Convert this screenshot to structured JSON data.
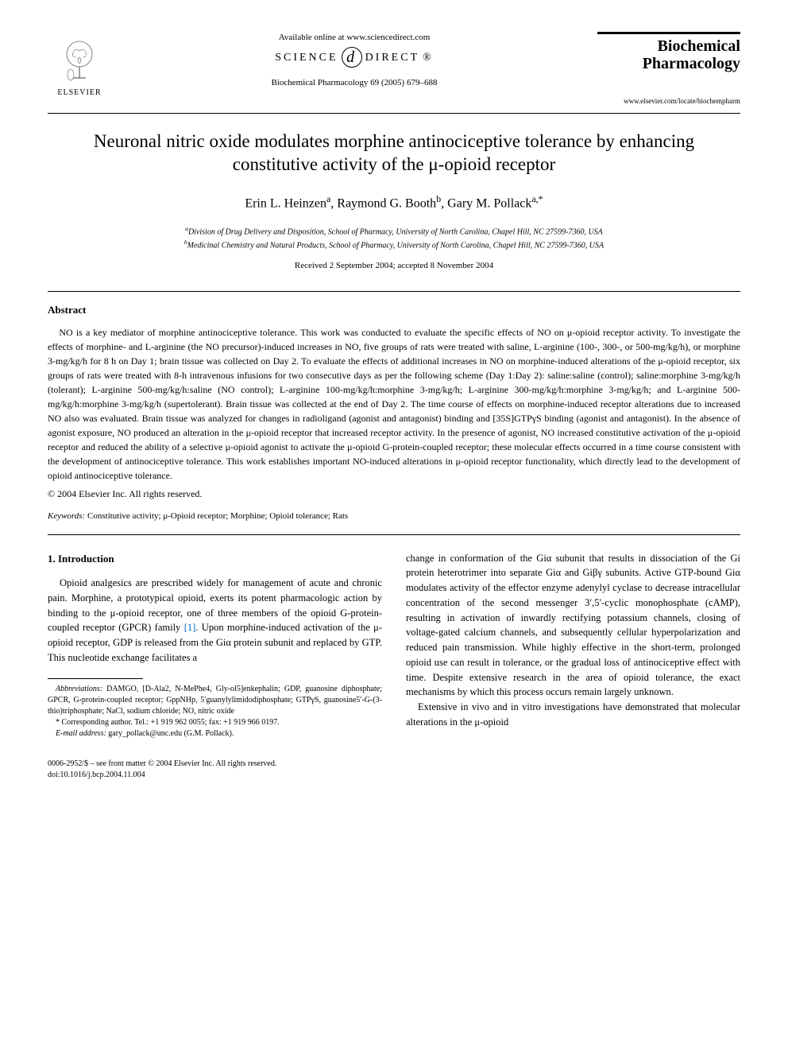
{
  "header": {
    "available_text": "Available online at www.sciencedirect.com",
    "science_direct": "SCIENCE",
    "science_direct2": "DIRECT",
    "elsevier_label": "ELSEVIER",
    "citation": "Biochemical Pharmacology 69 (2005) 679–688",
    "journal_name_1": "Biochemical",
    "journal_name_2": "Pharmacology",
    "journal_url": "www.elsevier.com/locate/biochempharm"
  },
  "title": "Neuronal nitric oxide modulates morphine antinociceptive tolerance by enhancing constitutive activity of the μ-opioid receptor",
  "authors_html": "Erin L. Heinzen<sup>a</sup>, Raymond G. Booth<sup>b</sup>, Gary M. Pollack<sup>a,*</sup>",
  "affiliations": {
    "a": "Division of Drug Delivery and Disposition, School of Pharmacy, University of North Carolina, Chapel Hill, NC 27599-7360, USA",
    "b": "Medicinal Chemistry and Natural Products, School of Pharmacy, University of North Carolina, Chapel Hill, NC 27599-7360, USA"
  },
  "dates": "Received 2 September 2004; accepted 8 November 2004",
  "abstract_heading": "Abstract",
  "abstract": "NO is a key mediator of morphine antinociceptive tolerance. This work was conducted to evaluate the specific effects of NO on μ-opioid receptor activity. To investigate the effects of morphine- and L-arginine (the NO precursor)-induced increases in NO, five groups of rats were treated with saline, L-arginine (100-, 300-, or 500-mg/kg/h), or morphine 3-mg/kg/h for 8 h on Day 1; brain tissue was collected on Day 2. To evaluate the effects of additional increases in NO on morphine-induced alterations of the μ-opioid receptor, six groups of rats were treated with 8-h intravenous infusions for two consecutive days as per the following scheme (Day 1:Day 2): saline:saline (control); saline:morphine 3-mg/kg/h (tolerant); L-arginine 500-mg/kg/h:saline (NO control); L-arginine 100-mg/kg/h:morphine 3-mg/kg/h; L-arginine 300-mg/kg/h:morphine 3-mg/kg/h; and L-arginine 500-mg/kg/h:morphine 3-mg/kg/h (supertolerant). Brain tissue was collected at the end of Day 2. The time course of effects on morphine-induced receptor alterations due to increased NO also was evaluated. Brain tissue was analyzed for changes in radioligand (agonist and antagonist) binding and [35S]GTPγS binding (agonist and antagonist). In the absence of agonist exposure, NO produced an alteration in the μ-opioid receptor that increased receptor activity. In the presence of agonist, NO increased constitutive activation of the μ-opioid receptor and reduced the ability of a selective μ-opioid agonist to activate the μ-opioid G-protein-coupled receptor; these molecular effects occurred in a time course consistent with the development of antinociceptive tolerance. This work establishes important NO-induced alterations in μ-opioid receptor functionality, which directly lead to the development of opioid antinociceptive tolerance.",
  "copyright_abstract": "© 2004 Elsevier Inc. All rights reserved.",
  "keywords_label": "Keywords:",
  "keywords": "Constitutive activity; μ-Opioid receptor; Morphine; Opioid tolerance; Rats",
  "intro_heading": "1. Introduction",
  "intro_col1": "Opioid analgesics are prescribed widely for management of acute and chronic pain. Morphine, a prototypical opioid, exerts its potent pharmacologic action by binding to the μ-opioid receptor, one of three members of the opioid G-protein-coupled receptor (GPCR) family [1]. Upon morphine-induced activation of the μ-opioid receptor, GDP is released from the Giα protein subunit and replaced by GTP. This nucleotide exchange facilitates a",
  "intro_col2_p1": "change in conformation of the Giα subunit that results in dissociation of the Gi protein heterotrimer into separate Giα and Giβγ subunits. Active GTP-bound Giα modulates activity of the effector enzyme adenylyl cyclase to decrease intracellular concentration of the second messenger 3′,5′-cyclic monophosphate (cAMP), resulting in activation of inwardly rectifying potassium channels, closing of voltage-gated calcium channels, and subsequently cellular hyperpolarization and reduced pain transmission. While highly effective in the short-term, prolonged opioid use can result in tolerance, or the gradual loss of antinociceptive effect with time. Despite extensive research in the area of opioid tolerance, the exact mechanisms by which this process occurs remain largely unknown.",
  "intro_col2_p2": "Extensive in vivo and in vitro investigations have demonstrated that molecular alterations in the μ-opioid",
  "footnotes": {
    "abbrev_label": "Abbreviations:",
    "abbrev": "DAMGO, [D-Ala2, N-MePhe4, Gly-ol5]enkephalin; GDP, guanosine diphosphate; GPCR, G-protein-coupled receptor; GppNHp, 5′guanylylimidodiphosphate; GTPγS, guanosine5′-G-(3-thio)triphosphate; NaCl, sodium chloride; NO, nitric oxide",
    "corresponding": "* Corresponding author. Tel.: +1 919 962 0055; fax: +1 919 966 0197.",
    "email_label": "E-mail address:",
    "email": "gary_pollack@unc.edu (G.M. Pollack)."
  },
  "bottom": {
    "issn": "0006-2952/$ – see front matter © 2004 Elsevier Inc. All rights reserved.",
    "doi": "doi:10.1016/j.bcp.2004.11.004"
  },
  "colors": {
    "text": "#000000",
    "link": "#0066cc",
    "background": "#ffffff"
  }
}
